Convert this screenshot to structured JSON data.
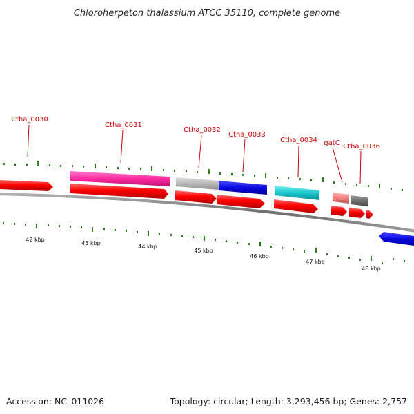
{
  "title": "Chloroherpeton thalassium ATCC 35110, complete genome",
  "footer": {
    "accession": "Accession: NC_011026",
    "summary": "Topology: circular; Length: 3,293,456 bp; Genes: 2,757"
  },
  "colors": {
    "backbone": "#8c8c8c",
    "cds": "#ff0000",
    "tick": "#2e7d1e",
    "label": "#cc0000"
  },
  "scale_labels": [
    "42 kbp",
    "43 kbp",
    "44 kbp",
    "45 kbp",
    "46 kbp",
    "47 kbp",
    "48 kbp"
  ],
  "gene_labels": [
    "Ctha_0030",
    "Ctha_0031",
    "Ctha_0032",
    "Ctha_0033",
    "Ctha_0034",
    "gatC",
    "Ctha_0036"
  ],
  "features": [
    {
      "name": "Ctha_0030",
      "color": "#ff0000",
      "strand": "+"
    },
    {
      "name": "Ctha_0031",
      "color": "#ff2aa0",
      "strand": "+"
    },
    {
      "name": "Ctha_0032",
      "color": "#b8b8b8",
      "strand": "+"
    },
    {
      "name": "Ctha_0033",
      "color": "#0a0ae0",
      "strand": "+"
    },
    {
      "name": "Ctha_0034",
      "color": "#18c8cc",
      "strand": "+"
    },
    {
      "name": "gatC",
      "color": "#f08080",
      "strand": "+"
    },
    {
      "name": "Ctha_0036",
      "color": "#707070",
      "strand": "+"
    }
  ]
}
